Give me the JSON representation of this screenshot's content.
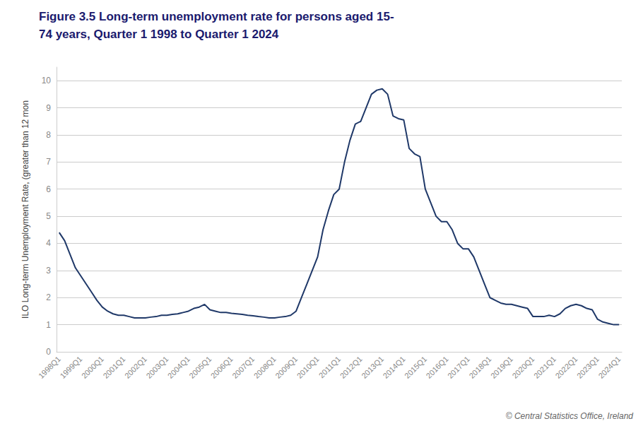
{
  "chart_data": {
    "type": "line",
    "title": "Figure 3.5 Long-term unemployment rate for persons aged 15-",
    "subtitle": "74 years, Quarter 1 1998 to Quarter 1 2024",
    "ylabel": "ILO Long-term Unemployment Rate, (greater than 12 mon",
    "annotations": [
      "© Central Statistics Office, Ireland"
    ],
    "color": "#1f3868",
    "grid": true,
    "ylim": [
      0,
      10.5
    ],
    "yticks": [
      0,
      1,
      2,
      3,
      4,
      5,
      6,
      7,
      8,
      9,
      10
    ],
    "categories": [
      "1998Q1",
      null,
      null,
      null,
      "1999Q1",
      null,
      null,
      null,
      "2000Q1",
      null,
      null,
      null,
      "2001Q1",
      null,
      null,
      null,
      "2002Q1",
      null,
      null,
      null,
      "2003Q1",
      null,
      null,
      null,
      "2004Q1",
      null,
      null,
      null,
      "2005Q1",
      null,
      null,
      null,
      "2006Q1",
      null,
      null,
      null,
      "2007Q1",
      null,
      null,
      null,
      "2008Q1",
      null,
      null,
      null,
      "2009Q1",
      null,
      null,
      null,
      "2010Q1",
      null,
      null,
      null,
      "2011Q1",
      null,
      null,
      null,
      "2012Q1",
      null,
      null,
      null,
      "2013Q1",
      null,
      null,
      null,
      "2014Q1",
      null,
      null,
      null,
      "2015Q1",
      null,
      null,
      null,
      "2016Q1",
      null,
      null,
      null,
      "2017Q1",
      null,
      null,
      null,
      "2018Q1",
      null,
      null,
      null,
      "2019Q1",
      null,
      null,
      null,
      "2020Q1",
      null,
      null,
      null,
      "2021Q1",
      null,
      null,
      null,
      "2022Q1",
      null,
      null,
      null,
      "2023Q1",
      null,
      null,
      null,
      "2024Q1"
    ],
    "values": [
      4.4,
      4.1,
      3.6,
      3.1,
      2.8,
      2.5,
      2.2,
      1.9,
      1.65,
      1.5,
      1.4,
      1.35,
      1.35,
      1.3,
      1.25,
      1.25,
      1.25,
      1.28,
      1.3,
      1.35,
      1.35,
      1.38,
      1.4,
      1.45,
      1.5,
      1.6,
      1.65,
      1.75,
      1.55,
      1.5,
      1.45,
      1.45,
      1.42,
      1.4,
      1.38,
      1.35,
      1.33,
      1.3,
      1.28,
      1.25,
      1.25,
      1.28,
      1.3,
      1.35,
      1.5,
      2.0,
      2.5,
      3.0,
      3.5,
      4.5,
      5.2,
      5.8,
      6.0,
      7.0,
      7.8,
      8.4,
      8.5,
      9.0,
      9.5,
      9.65,
      9.7,
      9.5,
      8.7,
      8.6,
      8.55,
      7.5,
      7.3,
      7.2,
      6.0,
      5.5,
      5.0,
      4.8,
      4.8,
      4.5,
      4.0,
      3.8,
      3.8,
      3.5,
      3.0,
      2.5,
      2.0,
      1.9,
      1.8,
      1.75,
      1.75,
      1.7,
      1.65,
      1.6,
      1.3,
      1.3,
      1.3,
      1.35,
      1.3,
      1.4,
      1.6,
      1.7,
      1.75,
      1.7,
      1.6,
      1.55,
      1.2,
      1.1,
      1.05,
      1.0,
      1.0
    ]
  }
}
